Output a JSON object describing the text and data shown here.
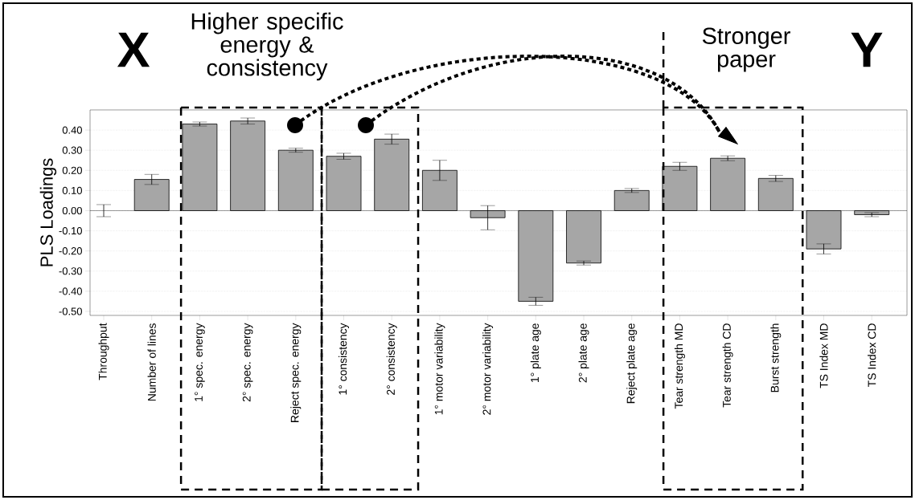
{
  "chart_data": {
    "type": "bar",
    "ylabel": "PLS Loadings",
    "categories": [
      "Throughput",
      "Number of lines",
      "1° spec. energy",
      "2° spec. energy",
      "Reject spec. energy",
      "1° consistency",
      "2° consistency",
      "1° motor variability",
      "2° motor variability",
      "1° plate age",
      "2° plate age",
      "Reject plate age",
      "Tear strength MD",
      "Tear strength CD",
      "Burst strength",
      "TS Index MD",
      "TS Index CD"
    ],
    "values": [
      0.0,
      0.155,
      0.43,
      0.445,
      0.3,
      0.27,
      0.355,
      0.2,
      -0.035,
      -0.45,
      -0.26,
      0.1,
      0.22,
      0.26,
      0.16,
      -0.19,
      -0.02
    ],
    "errors": [
      0.03,
      0.025,
      0.01,
      0.015,
      0.01,
      0.015,
      0.025,
      0.05,
      0.06,
      0.02,
      0.01,
      0.01,
      0.02,
      0.012,
      0.015,
      0.025,
      0.01
    ],
    "color": "#a6a6a6",
    "ylim": [
      -0.52,
      0.5
    ],
    "yticks": [
      {
        "value": -0.5,
        "label": "-0.50"
      },
      {
        "value": -0.4,
        "label": "-0.40"
      },
      {
        "value": -0.3,
        "label": "-0.30"
      },
      {
        "value": -0.2,
        "label": "-0.20"
      },
      {
        "value": -0.1,
        "label": "-0.10"
      },
      {
        "value": 0,
        "label": "0.00"
      },
      {
        "value": 0.1,
        "label": "0.10"
      },
      {
        "value": 0.2,
        "label": "0.20"
      },
      {
        "value": 0.3,
        "label": "0.30"
      },
      {
        "value": 0.4,
        "label": "0.40"
      }
    ],
    "grid": "y",
    "annotations": [
      "X",
      "Higher specific energy & consistency",
      "Stronger paper",
      "Y"
    ]
  }
}
